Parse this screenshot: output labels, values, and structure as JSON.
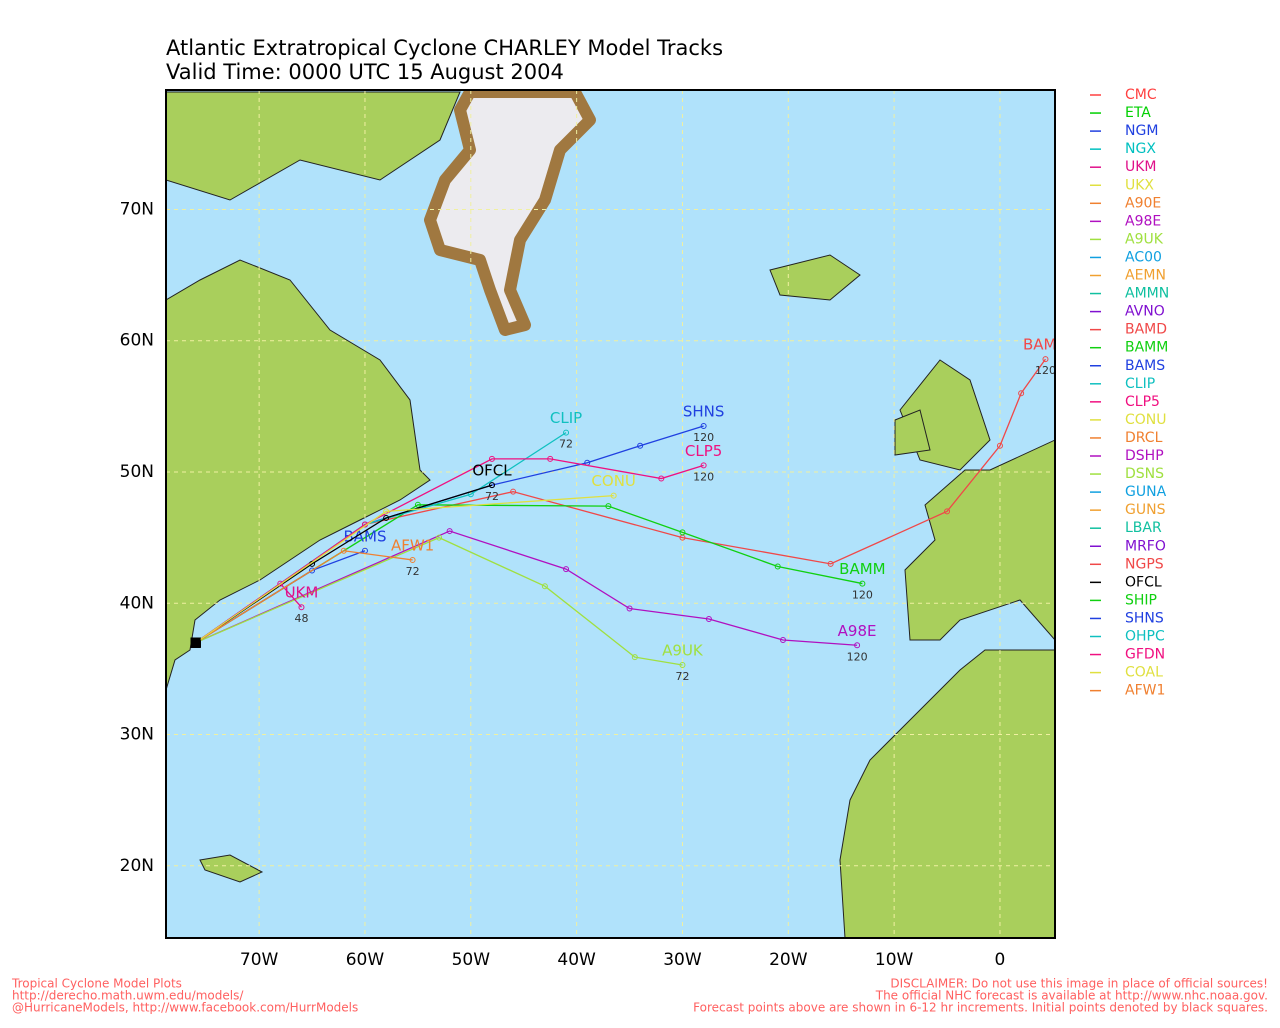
{
  "header": {
    "title": "Atlantic Extratropical Cyclone CHARLEY Model Tracks",
    "subtitle": "Valid Time: 0000 UTC 15 August 2004"
  },
  "map": {
    "xlim": [
      -78.8,
      5.2
    ],
    "ylim": [
      14.5,
      79.1
    ],
    "yticks": [
      {
        "value": 20,
        "label": "20N"
      },
      {
        "value": 30,
        "label": "30N"
      },
      {
        "value": 40,
        "label": "40N"
      },
      {
        "value": 50,
        "label": "50N"
      },
      {
        "value": 60,
        "label": "60N"
      },
      {
        "value": 70,
        "label": "70N"
      }
    ],
    "xticks": [
      {
        "value": -70,
        "label": "70W"
      },
      {
        "value": -60,
        "label": "60W"
      },
      {
        "value": -50,
        "label": "50W"
      },
      {
        "value": -40,
        "label": "40W"
      },
      {
        "value": -30,
        "label": "30W"
      },
      {
        "value": -20,
        "label": "20W"
      },
      {
        "value": -10,
        "label": "10W"
      },
      {
        "value": 0,
        "label": "0"
      }
    ],
    "grid": true,
    "tracks": [
      {
        "label": "BAMD",
        "color": "#f04848",
        "lon": [
          -76,
          -60,
          -46,
          -30,
          -16,
          -5,
          0,
          2,
          4.3
        ],
        "lat": [
          37,
          46,
          48.5,
          45,
          43,
          47,
          52,
          56,
          58.6
        ],
        "end_hour": "120"
      },
      {
        "label": "BAMM",
        "color": "#10d010",
        "lon": [
          -76,
          -55,
          -37,
          -30,
          -21,
          -13
        ],
        "lat": [
          37,
          47.5,
          47.4,
          45.4,
          42.8,
          41.5
        ],
        "end_hour": "120"
      },
      {
        "label": "BAMS",
        "color": "#2040e0",
        "lon": [
          -76,
          -65,
          -60
        ],
        "lat": [
          37,
          42.5,
          44
        ]
      },
      {
        "label": "A98E",
        "color": "#b010c0",
        "lon": [
          -76,
          -52,
          -41,
          -35,
          -27.5,
          -20.5,
          -13.5
        ],
        "lat": [
          37,
          45.5,
          42.6,
          39.6,
          38.8,
          37.2,
          36.8
        ],
        "end_hour": "120"
      },
      {
        "label": "A9UK",
        "color": "#a0e040",
        "lon": [
          -76,
          -53,
          -43,
          -34.5,
          -30
        ],
        "lat": [
          37,
          45,
          41.3,
          35.9,
          35.3
        ],
        "end_hour": "72"
      },
      {
        "label": "SHNS",
        "color": "#2040e0",
        "lon": [
          -76,
          -60,
          -48,
          -39,
          -34,
          -28
        ],
        "lat": [
          37,
          46,
          49,
          50.7,
          52,
          53.5
        ],
        "end_hour": "120"
      },
      {
        "label": "CLIP",
        "color": "#10c0c0",
        "lon": [
          -76,
          -60,
          -50,
          -41
        ],
        "lat": [
          37,
          46,
          48.3,
          53
        ],
        "end_hour": "72"
      },
      {
        "label": "CLP5",
        "color": "#f01080",
        "lon": [
          -76,
          -60,
          -48,
          -42.5,
          -32,
          -28
        ],
        "lat": [
          37,
          46,
          51,
          51,
          49.5,
          50.5
        ],
        "end_hour": "120"
      },
      {
        "label": "OFCL",
        "color": "#000000",
        "lon": [
          -76,
          -65,
          -58,
          -48
        ],
        "lat": [
          37,
          43,
          46.5,
          49
        ],
        "end_hour": "72"
      },
      {
        "label": "UKM",
        "color": "#e0108a",
        "lon": [
          -76,
          -68,
          -66
        ],
        "lat": [
          37,
          41.5,
          39.7
        ],
        "end_hour": "48"
      },
      {
        "label": "AFW1",
        "color": "#f08030",
        "lon": [
          -76,
          -62,
          -55.5
        ],
        "lat": [
          37,
          44,
          43.3
        ],
        "end_hour": "72"
      },
      {
        "label": "CONU",
        "color": "#e0e040",
        "lon": [
          -76,
          -58,
          -36.5
        ],
        "lat": [
          37,
          47,
          48.2
        ]
      }
    ]
  },
  "legend": [
    {
      "name": "CMC",
      "color": "#ff4040"
    },
    {
      "name": "ETA",
      "color": "#00d000"
    },
    {
      "name": "NGM",
      "color": "#2040e0"
    },
    {
      "name": "NGX",
      "color": "#00c0c0"
    },
    {
      "name": "UKM",
      "color": "#e0108a"
    },
    {
      "name": "UKX",
      "color": "#e0e040"
    },
    {
      "name": "A90E",
      "color": "#f08030"
    },
    {
      "name": "A98E",
      "color": "#b010c0"
    },
    {
      "name": "A9UK",
      "color": "#a0e040"
    },
    {
      "name": "AC00",
      "color": "#10a0e0"
    },
    {
      "name": "AEMN",
      "color": "#f0a030"
    },
    {
      "name": "AMMN",
      "color": "#10c0a0"
    },
    {
      "name": "AVNO",
      "color": "#8010d0"
    },
    {
      "name": "BAMD",
      "color": "#f04848"
    },
    {
      "name": "BAMM",
      "color": "#10d010"
    },
    {
      "name": "BAMS",
      "color": "#2040e0"
    },
    {
      "name": "CLIP",
      "color": "#10c0c0"
    },
    {
      "name": "CLP5",
      "color": "#f01080"
    },
    {
      "name": "CONU",
      "color": "#e0e040"
    },
    {
      "name": "DRCL",
      "color": "#f08030"
    },
    {
      "name": "DSHP",
      "color": "#b010c0"
    },
    {
      "name": "DSNS",
      "color": "#a0e040"
    },
    {
      "name": "GUNA",
      "color": "#10a0e0"
    },
    {
      "name": "GUNS",
      "color": "#f0a030"
    },
    {
      "name": "LBAR",
      "color": "#10c0a0"
    },
    {
      "name": "MRFO",
      "color": "#8010d0"
    },
    {
      "name": "NGPS",
      "color": "#f04848"
    },
    {
      "name": "OFCL",
      "color": "#000000"
    },
    {
      "name": "SHIP",
      "color": "#10d010"
    },
    {
      "name": "SHNS",
      "color": "#2040e0"
    },
    {
      "name": "OHPC",
      "color": "#10c0c0"
    },
    {
      "name": "GFDN",
      "color": "#f01080"
    },
    {
      "name": "COAL",
      "color": "#e0e040"
    },
    {
      "name": "AFW1",
      "color": "#f08030"
    }
  ],
  "footer": {
    "left": [
      "Tropical Cyclone Model Plots",
      "http://derecho.math.uwm.edu/models/",
      "@HurricaneModels, http://www.facebook.com/HurrModels"
    ],
    "right": [
      "DISCLAIMER: Do not use this image in place of official sources!",
      "The official NHC forecast is available at http://www.nhc.noaa.gov.",
      "Forecast points above are shown in 6-12 hr increments. Initial points denoted by black squares."
    ]
  }
}
